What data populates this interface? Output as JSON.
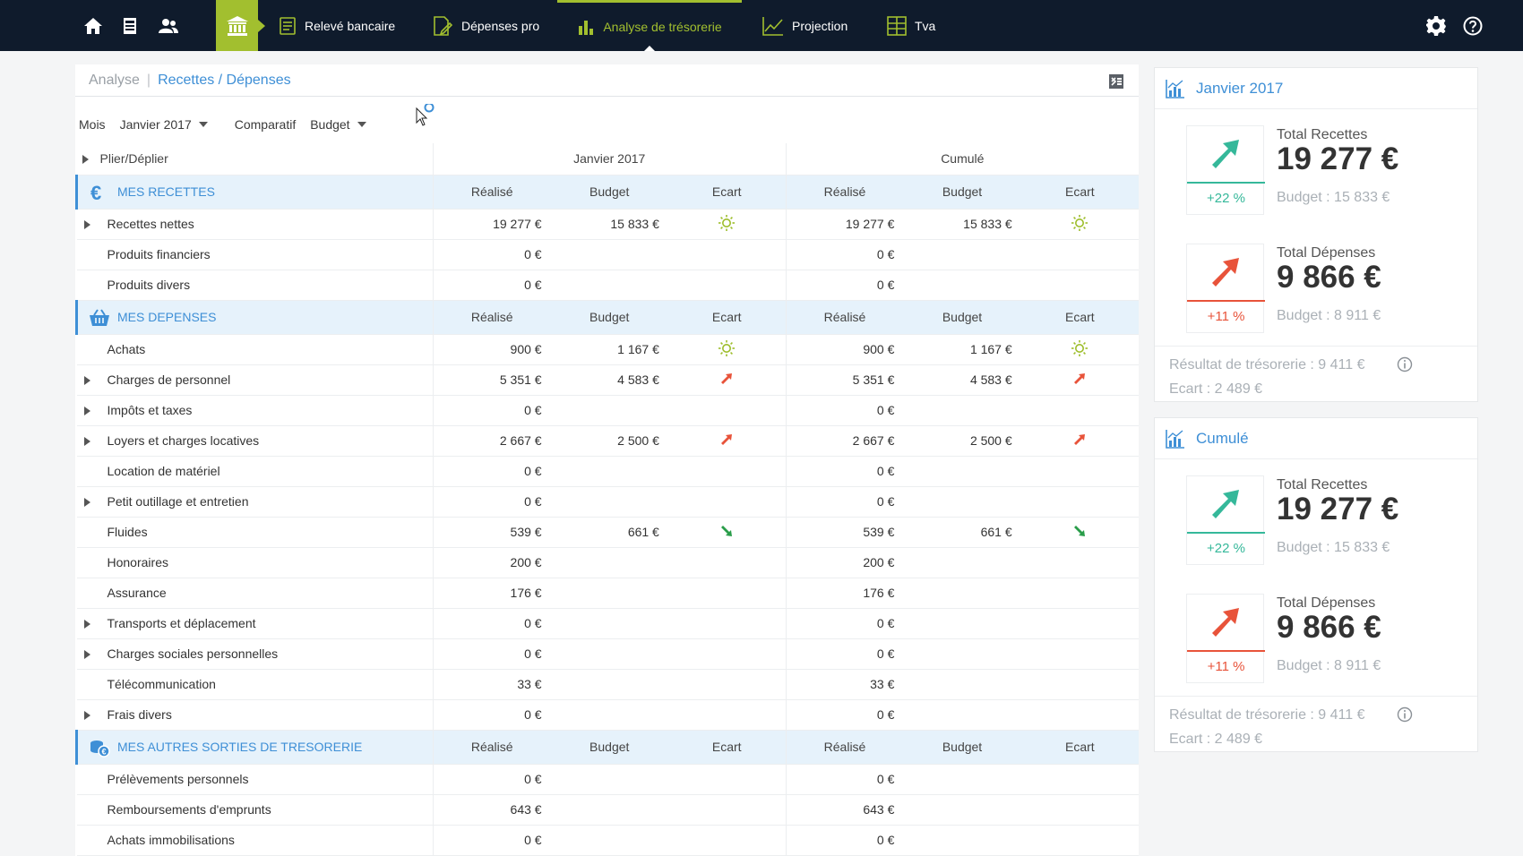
{
  "nav": {
    "items": [
      {
        "label": "Relevé bancaire",
        "icon": "bank-statement-icon"
      },
      {
        "label": "Dépenses pro",
        "icon": "receipt-icon"
      },
      {
        "label": "Analyse de trésorerie",
        "icon": "bar-chart-icon"
      },
      {
        "label": "Projection",
        "icon": "line-chart-icon"
      },
      {
        "label": "Tva",
        "icon": "calculator-icon"
      }
    ],
    "active": "Analyse de trésorerie",
    "accent": "#a2bf2f",
    "background": "#0f1b2c"
  },
  "breadcrumb": {
    "parent": "Analyse",
    "separator": "|",
    "current": "Recettes / Dépenses"
  },
  "filters": {
    "mois_label": "Mois",
    "mois_value": "Janvier 2017",
    "comparatif_label": "Comparatif",
    "comparatif_value": "Budget"
  },
  "table": {
    "plier": "Plier/Déplier",
    "period1": "Janvier 2017",
    "period2": "Cumulé",
    "col_realise": "Réalisé",
    "col_budget": "Budget",
    "col_ecart": "Ecart",
    "recettes": {
      "title": "MES RECETTES",
      "rows": [
        {
          "label": "Recettes nettes",
          "expand": true,
          "r1": "19 277 €",
          "b1": "15 833 €",
          "e": "sun",
          "r2": "19 277 €",
          "b2": "15 833 €"
        },
        {
          "label": "Produits financiers",
          "expand": false,
          "r1": "0 €",
          "b1": "",
          "e": "",
          "r2": "0 €",
          "b2": ""
        },
        {
          "label": "Produits divers",
          "expand": false,
          "r1": "0 €",
          "b1": "",
          "e": "",
          "r2": "0 €",
          "b2": ""
        }
      ]
    },
    "depenses": {
      "title": "MES DEPENSES",
      "rows": [
        {
          "label": "Achats",
          "expand": false,
          "r1": "900 €",
          "b1": "1 167 €",
          "e": "sun",
          "r2": "900 €",
          "b2": "1 167 €"
        },
        {
          "label": "Charges de personnel",
          "expand": true,
          "r1": "5 351 €",
          "b1": "4 583 €",
          "e": "up",
          "r2": "5 351 €",
          "b2": "4 583 €"
        },
        {
          "label": "Impôts et taxes",
          "expand": true,
          "r1": "0 €",
          "b1": "",
          "e": "",
          "r2": "0 €",
          "b2": ""
        },
        {
          "label": "Loyers et charges locatives",
          "expand": true,
          "r1": "2 667 €",
          "b1": "2 500 €",
          "e": "up",
          "r2": "2 667 €",
          "b2": "2 500 €"
        },
        {
          "label": "Location de matériel",
          "expand": false,
          "r1": "0 €",
          "b1": "",
          "e": "",
          "r2": "0 €",
          "b2": ""
        },
        {
          "label": "Petit outillage et entretien",
          "expand": true,
          "r1": "0 €",
          "b1": "",
          "e": "",
          "r2": "0 €",
          "b2": ""
        },
        {
          "label": "Fluides",
          "expand": false,
          "r1": "539 €",
          "b1": "661 €",
          "e": "down",
          "r2": "539 €",
          "b2": "661 €"
        },
        {
          "label": "Honoraires",
          "expand": false,
          "r1": "200 €",
          "b1": "",
          "e": "",
          "r2": "200 €",
          "b2": ""
        },
        {
          "label": "Assurance",
          "expand": false,
          "r1": "176 €",
          "b1": "",
          "e": "",
          "r2": "176 €",
          "b2": ""
        },
        {
          "label": "Transports et déplacement",
          "expand": true,
          "r1": "0 €",
          "b1": "",
          "e": "",
          "r2": "0 €",
          "b2": ""
        },
        {
          "label": "Charges sociales personnelles",
          "expand": true,
          "r1": "0 €",
          "b1": "",
          "e": "",
          "r2": "0 €",
          "b2": ""
        },
        {
          "label": "Télécommunication",
          "expand": false,
          "r1": "33 €",
          "b1": "",
          "e": "",
          "r2": "33 €",
          "b2": ""
        },
        {
          "label": "Frais divers",
          "expand": true,
          "r1": "0 €",
          "b1": "",
          "e": "",
          "r2": "0 €",
          "b2": ""
        }
      ]
    },
    "autres": {
      "title": "MES AUTRES SORTIES DE TRESORERIE",
      "rows": [
        {
          "label": "Prélèvements personnels",
          "expand": false,
          "r1": "0 €",
          "b1": "",
          "e": "",
          "r2": "0 €",
          "b2": ""
        },
        {
          "label": "Remboursements d'emprunts",
          "expand": false,
          "r1": "643 €",
          "b1": "",
          "e": "",
          "r2": "643 €",
          "b2": ""
        },
        {
          "label": "Achats immobilisations",
          "expand": false,
          "r1": "0 €",
          "b1": "",
          "e": "",
          "r2": "0 €",
          "b2": ""
        }
      ]
    }
  },
  "panels": [
    {
      "title": "Janvier 2017",
      "recettes": {
        "label": "Total Recettes",
        "value": "19 277 €",
        "pct": "+22 %",
        "budget": "Budget : 15 833 €"
      },
      "depenses": {
        "label": "Total Dépenses",
        "value": "9 866 €",
        "pct": "+11 %",
        "budget": "Budget : 8 911 €"
      },
      "resultat": "Résultat de trésorerie : 9 411 €",
      "ecart": "Ecart : 2 489 €"
    },
    {
      "title": "Cumulé",
      "recettes": {
        "label": "Total Recettes",
        "value": "19 277 €",
        "pct": "+22 %",
        "budget": "Budget : 15 833 €"
      },
      "depenses": {
        "label": "Total Dépenses",
        "value": "9 866 €",
        "pct": "+11 %",
        "budget": "Budget : 8 911 €"
      },
      "resultat": "Résultat de trésorerie : 9 411 €",
      "ecart": "Ecart : 2 489 €"
    }
  ],
  "colors": {
    "blue": "#3e8fd6",
    "green": "#35b89a",
    "red": "#e8533a",
    "sun": "#9dbd2a"
  }
}
